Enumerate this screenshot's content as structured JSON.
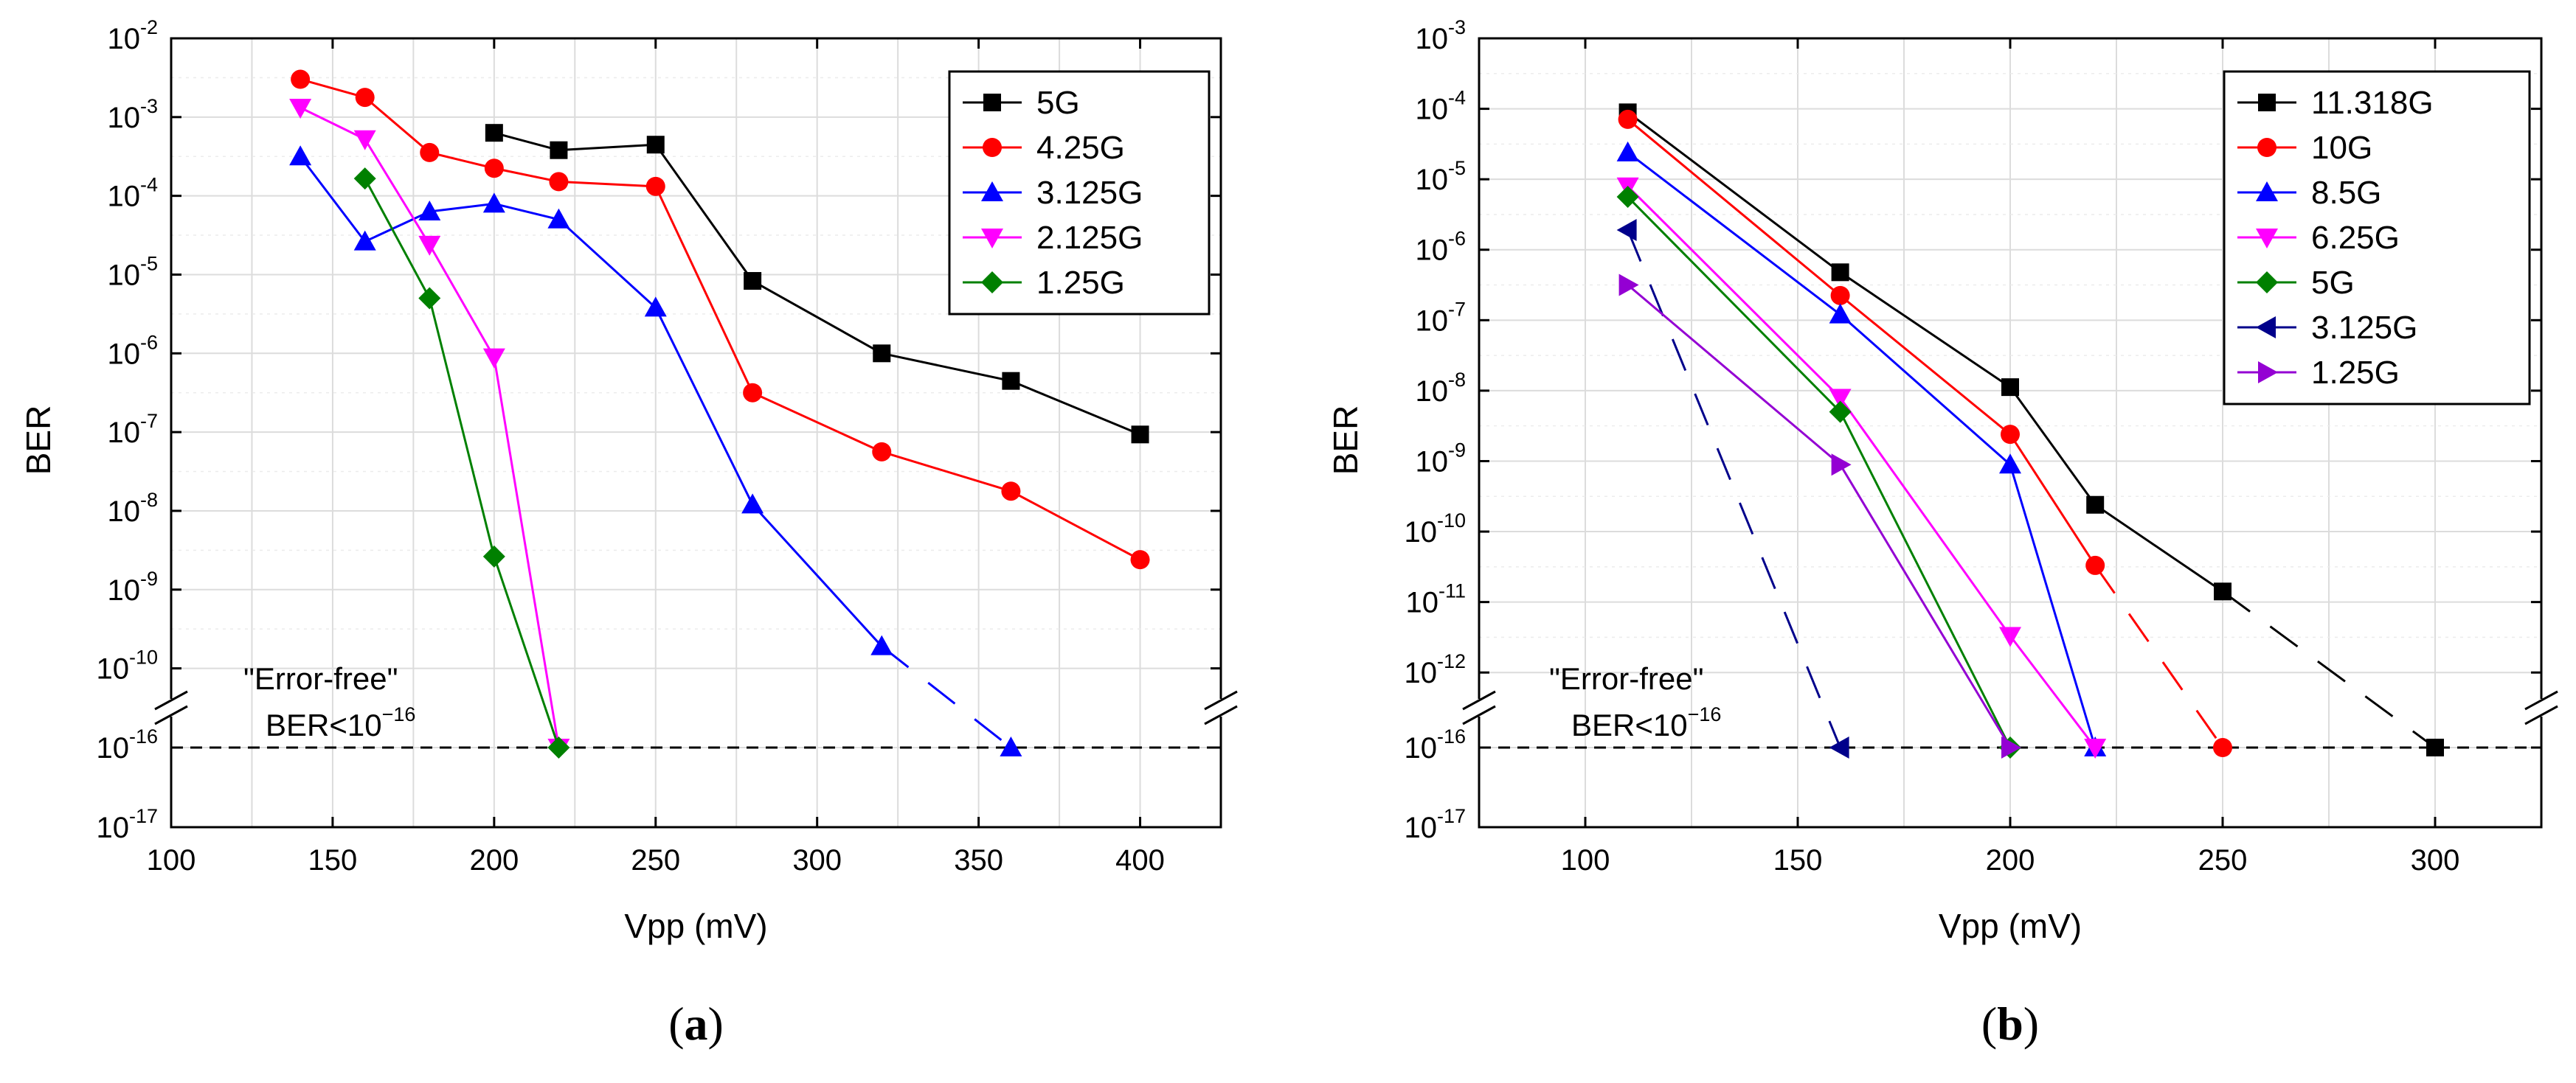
{
  "chart_data": [
    {
      "type": "line",
      "panel_label": "a",
      "xlabel": "Vpp (mV)",
      "ylabel": "BER",
      "xlim": [
        100,
        425
      ],
      "xticks": [
        100,
        150,
        200,
        250,
        300,
        350,
        400
      ],
      "yaxis": {
        "scale": "log",
        "broken": true,
        "upper_range_exp": [
          -10.5,
          -2
        ],
        "upper_ticks_exp": [
          -10,
          -9,
          -8,
          -7,
          -6,
          -5,
          -4,
          -3,
          -2
        ],
        "lower_range_exp": [
          -17,
          -15.5
        ],
        "lower_ticks_exp": [
          -17,
          -16
        ]
      },
      "grid": true,
      "legend_position": "top-right",
      "annotation_line1": "\"Error-free\"",
      "annotation_line2": "BER<10",
      "annotation_exp": "−16",
      "error_free_threshold_exp": -16,
      "series": [
        {
          "name": "5G",
          "color": "#000000",
          "marker": "square",
          "x": [
            200,
            220,
            250,
            280,
            320,
            360,
            400
          ],
          "log10_ber": [
            -3.2,
            -3.42,
            -3.35,
            -5.08,
            -6.0,
            -6.35,
            -7.03
          ]
        },
        {
          "name": "4.25G",
          "color": "#ff0000",
          "marker": "circle",
          "x": [
            140,
            160,
            180,
            200,
            220,
            250,
            280,
            320,
            360,
            400
          ],
          "log10_ber": [
            -2.52,
            -2.75,
            -3.45,
            -3.65,
            -3.82,
            -3.88,
            -6.5,
            -7.25,
            -7.75,
            -8.62
          ]
        },
        {
          "name": "3.125G",
          "color": "#0000ff",
          "marker": "triangle-up",
          "x": [
            140,
            160,
            180,
            200,
            220,
            250,
            280,
            320,
            360
          ],
          "log10_ber": [
            -3.5,
            -4.58,
            -4.2,
            -4.1,
            -4.3,
            -5.42,
            -7.92,
            -9.72,
            -16
          ],
          "dashed_last_segment": true
        },
        {
          "name": "2.125G",
          "color": "#ff00ff",
          "marker": "triangle-down",
          "x": [
            140,
            160,
            180,
            200,
            220
          ],
          "log10_ber": [
            -2.88,
            -3.28,
            -4.62,
            -6.05,
            -16
          ]
        },
        {
          "name": "1.25G",
          "color": "#008000",
          "marker": "diamond",
          "x": [
            160,
            180,
            200,
            220
          ],
          "log10_ber": [
            -3.78,
            -5.3,
            -8.58,
            -16
          ]
        }
      ]
    },
    {
      "type": "line",
      "panel_label": "b",
      "xlabel": "Vpp (mV)",
      "ylabel": "BER",
      "xlim": [
        75,
        325
      ],
      "xticks": [
        100,
        150,
        200,
        250,
        300
      ],
      "yaxis": {
        "scale": "log",
        "broken": true,
        "upper_range_exp": [
          -12.5,
          -3
        ],
        "upper_ticks_exp": [
          -12,
          -11,
          -10,
          -9,
          -8,
          -7,
          -6,
          -5,
          -4,
          -3
        ],
        "lower_range_exp": [
          -17,
          -15.5
        ],
        "lower_ticks_exp": [
          -17,
          -16
        ]
      },
      "grid": true,
      "legend_position": "top-right",
      "annotation_line1": "\"Error-free\"",
      "annotation_line2": "BER<10",
      "annotation_exp": "−16",
      "error_free_threshold_exp": -16,
      "series": [
        {
          "name": "11.318G",
          "color": "#000000",
          "marker": "square",
          "x": [
            110,
            160,
            200,
            220,
            250,
            300
          ],
          "log10_ber": [
            -4.05,
            -6.32,
            -7.95,
            -9.62,
            -10.85,
            -16
          ],
          "dashed_last_segment": true
        },
        {
          "name": "10G",
          "color": "#ff0000",
          "marker": "circle",
          "x": [
            110,
            160,
            200,
            220,
            250
          ],
          "log10_ber": [
            -4.15,
            -6.65,
            -8.62,
            -10.48,
            -16
          ],
          "dashed_last_segment": true
        },
        {
          "name": "8.5G",
          "color": "#0000ff",
          "marker": "triangle-up",
          "x": [
            110,
            160,
            200,
            220
          ],
          "log10_ber": [
            -4.62,
            -6.92,
            -9.05,
            -16
          ]
        },
        {
          "name": "6.25G",
          "color": "#ff00ff",
          "marker": "triangle-down",
          "x": [
            110,
            160,
            200,
            220
          ],
          "log10_ber": [
            -5.1,
            -8.1,
            -11.48,
            -16
          ]
        },
        {
          "name": "5G",
          "color": "#008000",
          "marker": "diamond",
          "x": [
            110,
            160,
            200
          ],
          "log10_ber": [
            -5.25,
            -8.3,
            -16
          ]
        },
        {
          "name": "3.125G",
          "color": "#00008b",
          "marker": "triangle-left",
          "x": [
            110,
            160
          ],
          "log10_ber": [
            -5.72,
            -16
          ],
          "dashed_last_segment": true
        },
        {
          "name": "1.25G",
          "color": "#9400d3",
          "marker": "triangle-right",
          "x": [
            110,
            160,
            200
          ],
          "log10_ber": [
            -6.5,
            -9.05,
            -16
          ]
        }
      ]
    }
  ]
}
